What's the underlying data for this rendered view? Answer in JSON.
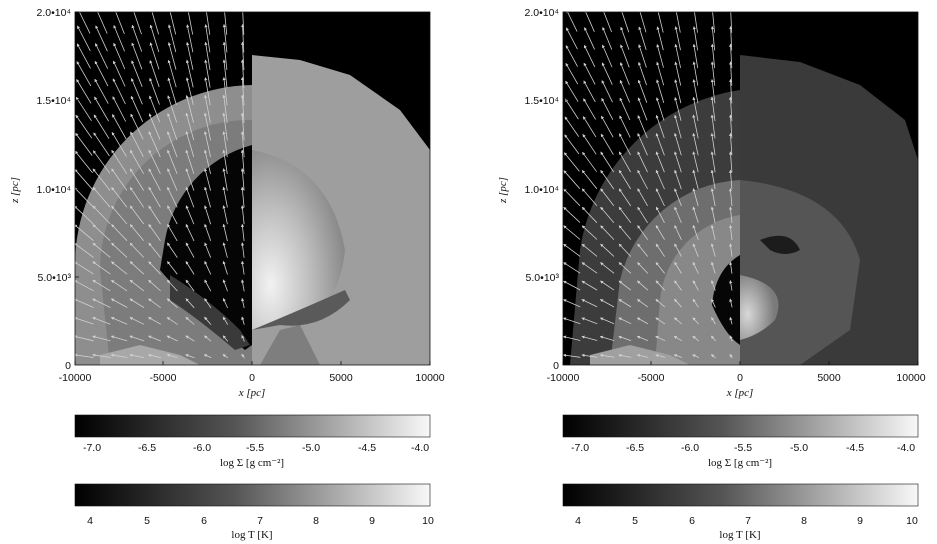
{
  "panels": [
    {
      "id": "left",
      "xlabel": "x [pc]",
      "ylabel": "z [pc]",
      "x_ticks": [
        "-10000",
        "-5000",
        "0",
        "5000",
        "10000"
      ],
      "y_ticks": [
        "0",
        "5.0•10³",
        "1.0•10⁴",
        "1.5•10⁴",
        "2.0•10⁴"
      ]
    },
    {
      "id": "right",
      "xlabel": "x [pc]",
      "ylabel": "z [pc]",
      "x_ticks": [
        "-10000",
        "-5000",
        "0",
        "5000",
        "10000"
      ],
      "y_ticks": [
        "0",
        "5.0•10³",
        "1.0•10⁴",
        "1.5•10⁴",
        "2.0•10⁴"
      ]
    }
  ],
  "colorbars": {
    "density": {
      "label": "log Σ [g cm⁻²]",
      "ticks": [
        "-7.0",
        "-6.5",
        "-6.0",
        "-5.5",
        "-5.0",
        "-4.5",
        "-4.0"
      ]
    },
    "temperature": {
      "label": "log T [K]",
      "ticks": [
        "4",
        "5",
        "6",
        "7",
        "8",
        "9",
        "10"
      ]
    }
  },
  "colors": {
    "background": "#000000",
    "arrow": "#d0d0d0",
    "axis": "#111111"
  }
}
